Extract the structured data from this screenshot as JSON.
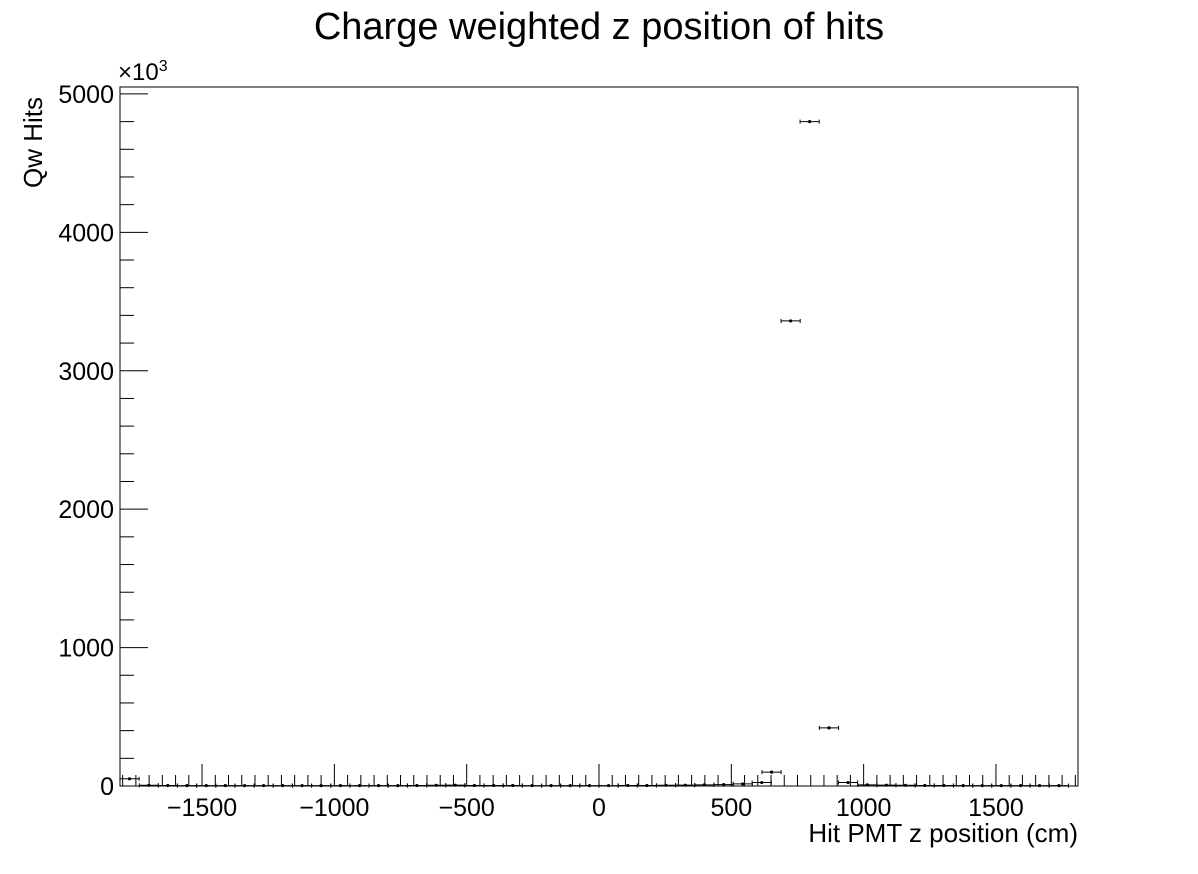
{
  "chart_data": {
    "type": "scatter",
    "title": "Charge weighted z position of hits",
    "xlabel": "Hit PMT z position (cm)",
    "ylabel": "Qw Hits",
    "y_multiplier_label": "×10",
    "y_multiplier_exponent": "3",
    "xlim": [
      -1810,
      1810
    ],
    "ylim": [
      0,
      5050
    ],
    "x_ticks": [
      -1500,
      -1000,
      -500,
      0,
      500,
      1000,
      1500
    ],
    "x_tick_labels": [
      "−1500",
      "−1000",
      "−500",
      "0",
      "500",
      "1000",
      "1500"
    ],
    "y_ticks": [
      0,
      1000,
      2000,
      3000,
      4000,
      5000
    ],
    "y_tick_labels": [
      "0",
      "1000",
      "2000",
      "3000",
      "4000",
      "5000"
    ],
    "bin_width": 72.4,
    "grid": false,
    "points": [
      {
        "x": -1774,
        "y": 52
      },
      {
        "x": -1701,
        "y": 5
      },
      {
        "x": -1629,
        "y": 4
      },
      {
        "x": -1557,
        "y": 3
      },
      {
        "x": -1484,
        "y": 3
      },
      {
        "x": -1412,
        "y": 3
      },
      {
        "x": -1339,
        "y": 3
      },
      {
        "x": -1267,
        "y": 3
      },
      {
        "x": -1195,
        "y": 3
      },
      {
        "x": -1122,
        "y": 3
      },
      {
        "x": -1050,
        "y": 3
      },
      {
        "x": -977,
        "y": 3
      },
      {
        "x": -905,
        "y": 3
      },
      {
        "x": -833,
        "y": 3
      },
      {
        "x": -760,
        "y": 3
      },
      {
        "x": -688,
        "y": 4
      },
      {
        "x": -615,
        "y": 5
      },
      {
        "x": -543,
        "y": 6
      },
      {
        "x": -471,
        "y": 4
      },
      {
        "x": -398,
        "y": 4
      },
      {
        "x": -326,
        "y": 4
      },
      {
        "x": -253,
        "y": 3
      },
      {
        "x": -181,
        "y": 3
      },
      {
        "x": -109,
        "y": 3
      },
      {
        "x": -36,
        "y": 3
      },
      {
        "x": 36,
        "y": 3
      },
      {
        "x": 109,
        "y": 4
      },
      {
        "x": 181,
        "y": 4
      },
      {
        "x": 253,
        "y": 5
      },
      {
        "x": 326,
        "y": 6
      },
      {
        "x": 398,
        "y": 8
      },
      {
        "x": 471,
        "y": 10
      },
      {
        "x": 543,
        "y": 15
      },
      {
        "x": 615,
        "y": 25
      },
      {
        "x": 652,
        "y": 100
      },
      {
        "x": 724,
        "y": 3360
      },
      {
        "x": 796,
        "y": 4800
      },
      {
        "x": 869,
        "y": 420
      },
      {
        "x": 941,
        "y": 25
      },
      {
        "x": 1014,
        "y": 8
      },
      {
        "x": 1086,
        "y": 6
      },
      {
        "x": 1158,
        "y": 5
      },
      {
        "x": 1231,
        "y": 4
      },
      {
        "x": 1303,
        "y": 4
      },
      {
        "x": 1376,
        "y": 3
      },
      {
        "x": 1448,
        "y": 3
      },
      {
        "x": 1520,
        "y": 3
      },
      {
        "x": 1593,
        "y": 3
      },
      {
        "x": 1665,
        "y": 3
      },
      {
        "x": 1738,
        "y": 3
      }
    ]
  }
}
